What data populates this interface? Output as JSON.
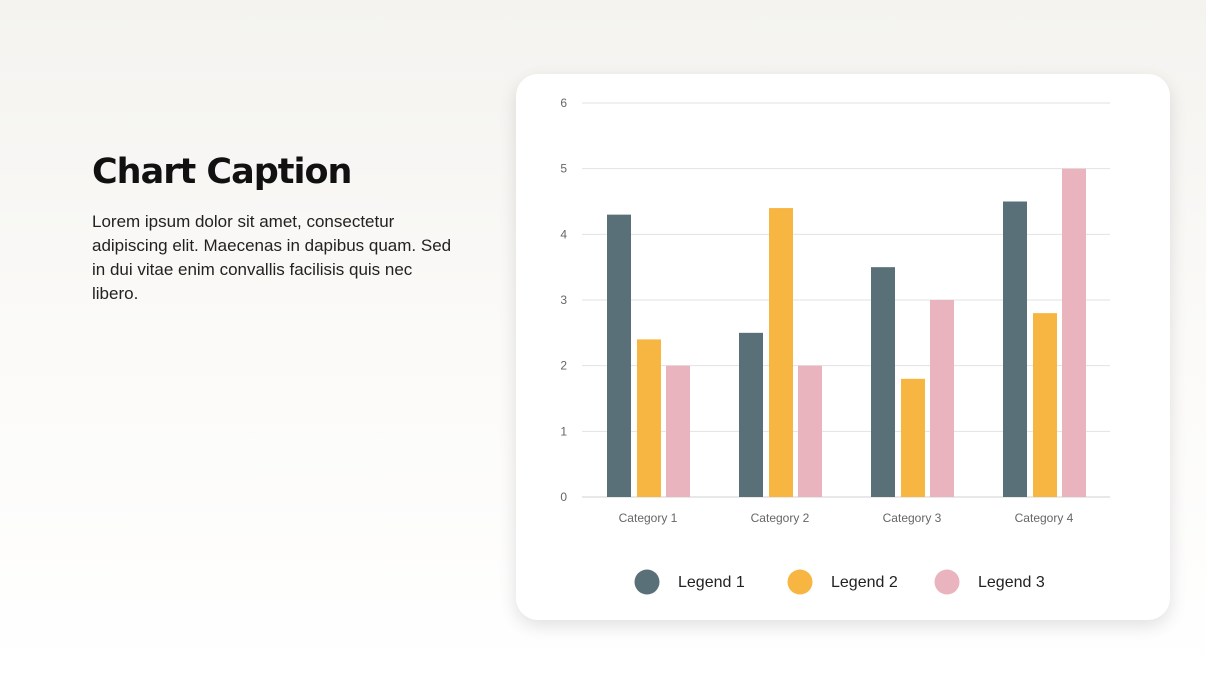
{
  "caption": {
    "title": "Chart Caption",
    "body": "Lorem ipsum dolor sit amet, consectetur adipiscing elit. Maecenas in dapibus quam. Sed in dui vitae enim convallis facilisis quis nec libero."
  },
  "chart_data": {
    "type": "bar",
    "categories": [
      "Category 1",
      "Category 2",
      "Category 3",
      "Category 4"
    ],
    "series": [
      {
        "name": "Legend 1",
        "values": [
          4.3,
          2.5,
          3.5,
          4.5
        ],
        "color": "#5a7078"
      },
      {
        "name": "Legend 2",
        "values": [
          2.4,
          4.4,
          1.8,
          2.8
        ],
        "color": "#f7b541"
      },
      {
        "name": "Legend 3",
        "values": [
          2.0,
          2.0,
          3.0,
          5.0
        ],
        "color": "#e9b4bd"
      }
    ],
    "ylim": [
      0,
      6
    ],
    "yticks": [
      "0",
      "1",
      "2",
      "3",
      "4",
      "5",
      "6"
    ],
    "grid": true,
    "legend_position": "bottom"
  }
}
